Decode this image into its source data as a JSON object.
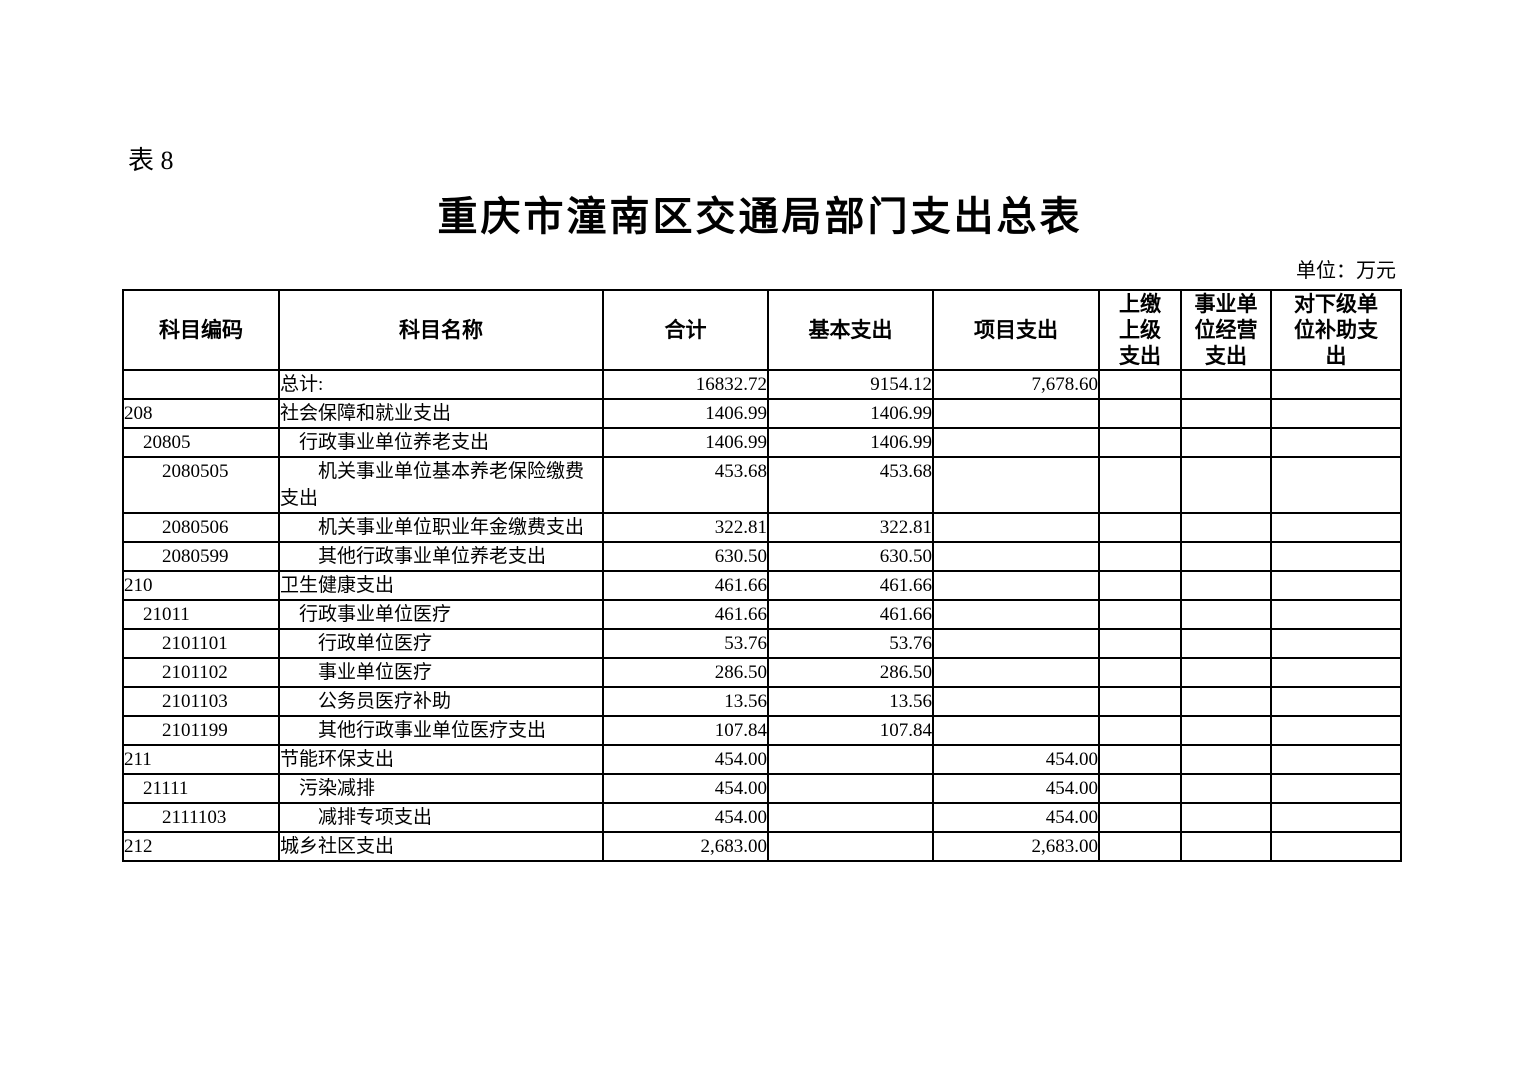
{
  "page": {
    "table_label": "表 8",
    "title": "重庆市潼南区交通局部门支出总表",
    "unit_note": "单位：万元"
  },
  "table": {
    "columns": [
      {
        "key": "code",
        "label": "科目编码"
      },
      {
        "key": "name",
        "label": "科目名称"
      },
      {
        "key": "total",
        "label": "合计"
      },
      {
        "key": "basic",
        "label": "基本支出"
      },
      {
        "key": "project",
        "label": "项目支出"
      },
      {
        "key": "upper",
        "label": "上缴上级支出"
      },
      {
        "key": "business",
        "label": "事业单位经营支出"
      },
      {
        "key": "subsidy",
        "label": "对下级单位补助支出"
      }
    ],
    "rows": [
      {
        "code": "",
        "name": "总计:",
        "total": "16832.72",
        "basic": "9154.12",
        "project": "7,678.60",
        "upper": "",
        "business": "",
        "subsidy": ""
      },
      {
        "code": "208",
        "name": "社会保障和就业支出",
        "total": "1406.99",
        "basic": "1406.99",
        "project": "",
        "upper": "",
        "business": "",
        "subsidy": ""
      },
      {
        "code": "　20805",
        "name": "　行政事业单位养老支出",
        "total": "1406.99",
        "basic": "1406.99",
        "project": "",
        "upper": "",
        "business": "",
        "subsidy": ""
      },
      {
        "code": "　　2080505",
        "name": "　　机关事业单位基本养老保险缴费支出",
        "total": "453.68",
        "basic": "453.68",
        "project": "",
        "upper": "",
        "business": "",
        "subsidy": ""
      },
      {
        "code": "　　2080506",
        "name": "　　机关事业单位职业年金缴费支出",
        "total": "322.81",
        "basic": "322.81",
        "project": "",
        "upper": "",
        "business": "",
        "subsidy": ""
      },
      {
        "code": "　　2080599",
        "name": "　　其他行政事业单位养老支出",
        "total": "630.50",
        "basic": "630.50",
        "project": "",
        "upper": "",
        "business": "",
        "subsidy": ""
      },
      {
        "code": "210",
        "name": "卫生健康支出",
        "total": "461.66",
        "basic": "461.66",
        "project": "",
        "upper": "",
        "business": "",
        "subsidy": ""
      },
      {
        "code": "　21011",
        "name": "　行政事业单位医疗",
        "total": "461.66",
        "basic": "461.66",
        "project": "",
        "upper": "",
        "business": "",
        "subsidy": ""
      },
      {
        "code": "　　2101101",
        "name": "　　行政单位医疗",
        "total": "53.76",
        "basic": "53.76",
        "project": "",
        "upper": "",
        "business": "",
        "subsidy": ""
      },
      {
        "code": "　　2101102",
        "name": "　　事业单位医疗",
        "total": "286.50",
        "basic": "286.50",
        "project": "",
        "upper": "",
        "business": "",
        "subsidy": ""
      },
      {
        "code": "　　2101103",
        "name": "　　公务员医疗补助",
        "total": "13.56",
        "basic": "13.56",
        "project": "",
        "upper": "",
        "business": "",
        "subsidy": ""
      },
      {
        "code": "　　2101199",
        "name": "　　其他行政事业单位医疗支出",
        "total": "107.84",
        "basic": "107.84",
        "project": "",
        "upper": "",
        "business": "",
        "subsidy": ""
      },
      {
        "code": "211",
        "name": "节能环保支出",
        "total": "454.00",
        "basic": "",
        "project": "454.00",
        "upper": "",
        "business": "",
        "subsidy": ""
      },
      {
        "code": "　21111",
        "name": "　污染减排",
        "total": "454.00",
        "basic": "",
        "project": "454.00",
        "upper": "",
        "business": "",
        "subsidy": ""
      },
      {
        "code": "　　2111103",
        "name": "　　减排专项支出",
        "total": "454.00",
        "basic": "",
        "project": "454.00",
        "upper": "",
        "business": "",
        "subsidy": ""
      },
      {
        "code": "212",
        "name": "城乡社区支出",
        "total": "2,683.00",
        "basic": "",
        "project": "2,683.00",
        "upper": "",
        "business": "",
        "subsidy": ""
      }
    ]
  }
}
